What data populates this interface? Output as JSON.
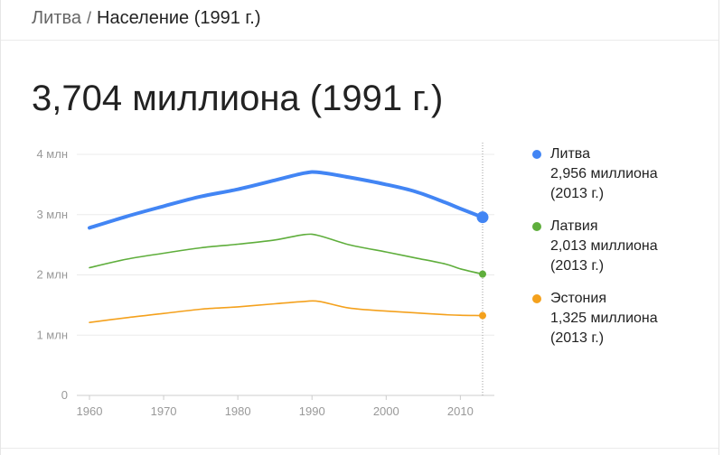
{
  "breadcrumb": {
    "parent": "Литва",
    "separator": "/",
    "current": "Население (1991 г.)"
  },
  "headline": "3,704 миллиона (1991 г.)",
  "legend": [
    {
      "name": "Литва",
      "value": "2,956 миллиона",
      "year": "(2013 г.)",
      "color": "#4285f4"
    },
    {
      "name": "Латвия",
      "value": "2,013 миллиона",
      "year": "(2013 г.)",
      "color": "#5fae3c"
    },
    {
      "name": "Эстония",
      "value": "1,325 миллиона",
      "year": "(2013 г.)",
      "color": "#f4a11d"
    }
  ],
  "chart_data": {
    "type": "line",
    "title": "",
    "xlabel": "",
    "ylabel": "",
    "xlim": [
      1960,
      2013
    ],
    "ylim": [
      0,
      4
    ],
    "x_ticks": [
      1960,
      1970,
      1980,
      1990,
      2000,
      2010
    ],
    "y_ticks": [
      {
        "value": 0,
        "label": "0"
      },
      {
        "value": 1,
        "label": "1 млн"
      },
      {
        "value": 2,
        "label": "2 млн"
      },
      {
        "value": 3,
        "label": "3 млн"
      },
      {
        "value": 4,
        "label": "4 млн"
      }
    ],
    "grid": true,
    "highlight_x": 2013,
    "series": [
      {
        "name": "Литва",
        "color": "#4285f4",
        "emphasis": true,
        "x": [
          1960,
          1965,
          1970,
          1975,
          1980,
          1985,
          1989,
          1991,
          1995,
          2000,
          2004,
          2008,
          2010,
          2013
        ],
        "y": [
          2.78,
          2.97,
          3.14,
          3.3,
          3.42,
          3.57,
          3.69,
          3.7,
          3.62,
          3.5,
          3.38,
          3.2,
          3.1,
          2.956
        ]
      },
      {
        "name": "Латвия",
        "color": "#5fae3c",
        "emphasis": false,
        "x": [
          1960,
          1965,
          1970,
          1975,
          1980,
          1985,
          1989,
          1991,
          1995,
          2000,
          2004,
          2008,
          2010,
          2013
        ],
        "y": [
          2.12,
          2.26,
          2.36,
          2.45,
          2.51,
          2.58,
          2.67,
          2.65,
          2.5,
          2.38,
          2.28,
          2.18,
          2.1,
          2.013
        ]
      },
      {
        "name": "Эстония",
        "color": "#f4a11d",
        "emphasis": false,
        "x": [
          1960,
          1965,
          1970,
          1975,
          1980,
          1985,
          1989,
          1991,
          1995,
          2000,
          2004,
          2008,
          2010,
          2013
        ],
        "y": [
          1.21,
          1.29,
          1.36,
          1.43,
          1.47,
          1.52,
          1.56,
          1.56,
          1.45,
          1.4,
          1.37,
          1.34,
          1.33,
          1.325
        ]
      }
    ]
  }
}
